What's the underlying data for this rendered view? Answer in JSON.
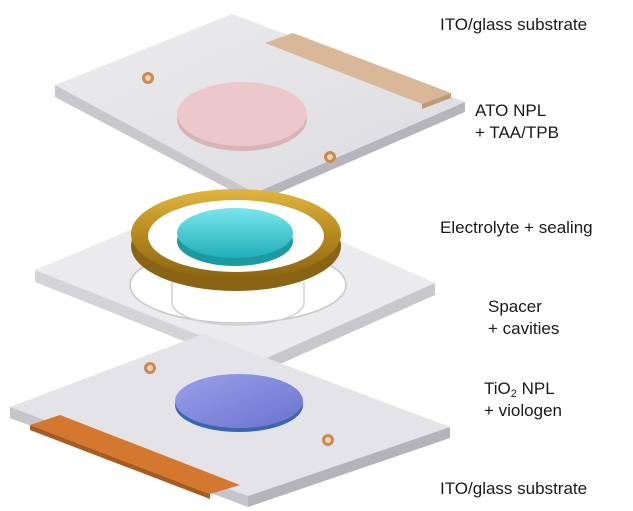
{
  "labels": {
    "top_substrate": "ITO/glass substrate",
    "ato_line1": "ATO NPL",
    "ato_line2": "+ TAA/TPB",
    "electrolyte": "Electrolyte + sealing",
    "spacer_line1": "Spacer",
    "spacer_line2": "+ cavities",
    "tio2_prefix": "TiO",
    "tio2_sub": "2",
    "tio2_suffix": " NPL",
    "tio2_line2": "+ viologen",
    "bottom_substrate": "ITO/glass substrate"
  },
  "colors": {
    "glass_top": "#e7e7e9",
    "glass_side": "#bdbdc2",
    "ito_contact_top": "#d9b89a",
    "ito_contact_bottom": "#d4782f",
    "ato_disc": "#e8c8cc",
    "electrolyte": "#33c6cf",
    "sealing_ring": "#c79a2a",
    "tio2_disc": "#7c83d8",
    "screw": "#c98a52"
  }
}
